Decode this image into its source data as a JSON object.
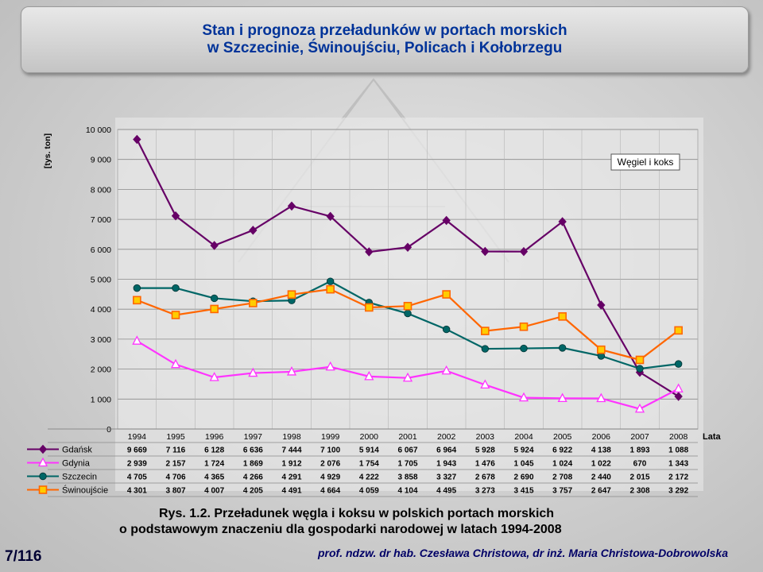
{
  "title": {
    "line1": "Stan i prognoza przeładunków w portach morskich",
    "line2": "w Szczecinie, Świnoujściu, Policach i Kołobrzegu"
  },
  "chart_data": {
    "type": "line",
    "ylabel": "[tys. ton]",
    "xlabel": "Lata",
    "legend_label": "Węgiel i koks",
    "legend_placement": "top-right",
    "ylim": [
      0,
      10000
    ],
    "yticks": [
      "0",
      "1 000",
      "2 000",
      "3 000",
      "4 000",
      "5 000",
      "6 000",
      "7 000",
      "8 000",
      "9 000",
      "10 000"
    ],
    "grid": true,
    "categories": [
      "1994",
      "1995",
      "1996",
      "1997",
      "1998",
      "1999",
      "2000",
      "2001",
      "2002",
      "2003",
      "2004",
      "2005",
      "2006",
      "2007",
      "2008"
    ],
    "series": [
      {
        "name": "Gdańsk",
        "color": "#660066",
        "marker": "diamond",
        "values": [
          9669,
          7116,
          6128,
          6636,
          7444,
          7100,
          5914,
          6067,
          6964,
          5928,
          5924,
          6922,
          4138,
          1893,
          1088
        ],
        "labels": [
          "9 669",
          "7 116",
          "6 128",
          "6 636",
          "7 444",
          "7 100",
          "5 914",
          "6 067",
          "6 964",
          "5 928",
          "5 924",
          "6 922",
          "4 138",
          "1 893",
          "1 088"
        ]
      },
      {
        "name": "Gdynia",
        "color": "#ff33ff",
        "marker": "triangle",
        "values": [
          2939,
          2157,
          1724,
          1869,
          1912,
          2076,
          1754,
          1705,
          1943,
          1476,
          1045,
          1024,
          1022,
          670,
          1343
        ],
        "labels": [
          "2 939",
          "2 157",
          "1 724",
          "1 869",
          "1 912",
          "2 076",
          "1 754",
          "1 705",
          "1 943",
          "1 476",
          "1 045",
          "1 024",
          "1 022",
          "670",
          "1 343"
        ]
      },
      {
        "name": "Szczecin",
        "color": "#006666",
        "marker": "circle",
        "values": [
          4705,
          4706,
          4365,
          4266,
          4291,
          4929,
          4222,
          3858,
          3327,
          2678,
          2690,
          2708,
          2440,
          2015,
          2172
        ],
        "labels": [
          "4 705",
          "4 706",
          "4 365",
          "4 266",
          "4 291",
          "4 929",
          "4 222",
          "3 858",
          "3 327",
          "2 678",
          "2 690",
          "2 708",
          "2 440",
          "2 015",
          "2 172"
        ]
      },
      {
        "name": "Świnoujście",
        "color": "#ff6600",
        "marker": "square",
        "values": [
          4301,
          3807,
          4007,
          4205,
          4491,
          4664,
          4059,
          4104,
          4495,
          3273,
          3415,
          3757,
          2647,
          2308,
          3292
        ],
        "labels": [
          "4 301",
          "3 807",
          "4 007",
          "4 205",
          "4 491",
          "4 664",
          "4 059",
          "4 104",
          "4 495",
          "3 273",
          "3 415",
          "3 757",
          "2 647",
          "2 308",
          "3 292"
        ]
      }
    ]
  },
  "caption": {
    "line1": "Rys. 1.2. Przeładunek węgla i koksu w polskich portach morskich",
    "line2": "o podstawowym znaczeniu dla gospodarki narodowej w latach 1994-2008"
  },
  "page_number": "7/116",
  "authors": "prof. ndzw. dr hab. Czesława Christowa, dr inż. Maria Christowa-Dobrowolska"
}
